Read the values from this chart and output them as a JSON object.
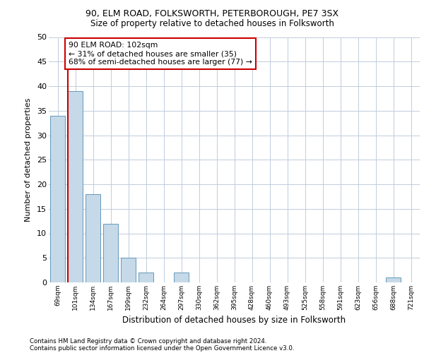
{
  "title1": "90, ELM ROAD, FOLKSWORTH, PETERBOROUGH, PE7 3SX",
  "title2": "Size of property relative to detached houses in Folksworth",
  "xlabel": "Distribution of detached houses by size in Folksworth",
  "ylabel": "Number of detached properties",
  "footer1": "Contains HM Land Registry data © Crown copyright and database right 2024.",
  "footer2": "Contains public sector information licensed under the Open Government Licence v3.0.",
  "annotation_line1": "90 ELM ROAD: 102sqm",
  "annotation_line2": "← 31% of detached houses are smaller (35)",
  "annotation_line3": "68% of semi-detached houses are larger (77) →",
  "bar_categories": [
    "69sqm",
    "101sqm",
    "134sqm",
    "167sqm",
    "199sqm",
    "232sqm",
    "264sqm",
    "297sqm",
    "330sqm",
    "362sqm",
    "395sqm",
    "428sqm",
    "460sqm",
    "493sqm",
    "525sqm",
    "558sqm",
    "591sqm",
    "623sqm",
    "656sqm",
    "688sqm",
    "721sqm"
  ],
  "bar_values": [
    34,
    39,
    18,
    12,
    5,
    2,
    0,
    2,
    0,
    0,
    0,
    0,
    0,
    0,
    0,
    0,
    0,
    0,
    0,
    1,
    0
  ],
  "bar_color": "#c5d9e8",
  "bar_edge_color": "#6699bb",
  "property_line_color": "#cc0000",
  "annotation_box_color": "#cc0000",
  "background_color": "#ffffff",
  "grid_color": "#c0ccdd",
  "ylim": [
    0,
    50
  ],
  "yticks": [
    0,
    5,
    10,
    15,
    20,
    25,
    30,
    35,
    40,
    45,
    50
  ]
}
